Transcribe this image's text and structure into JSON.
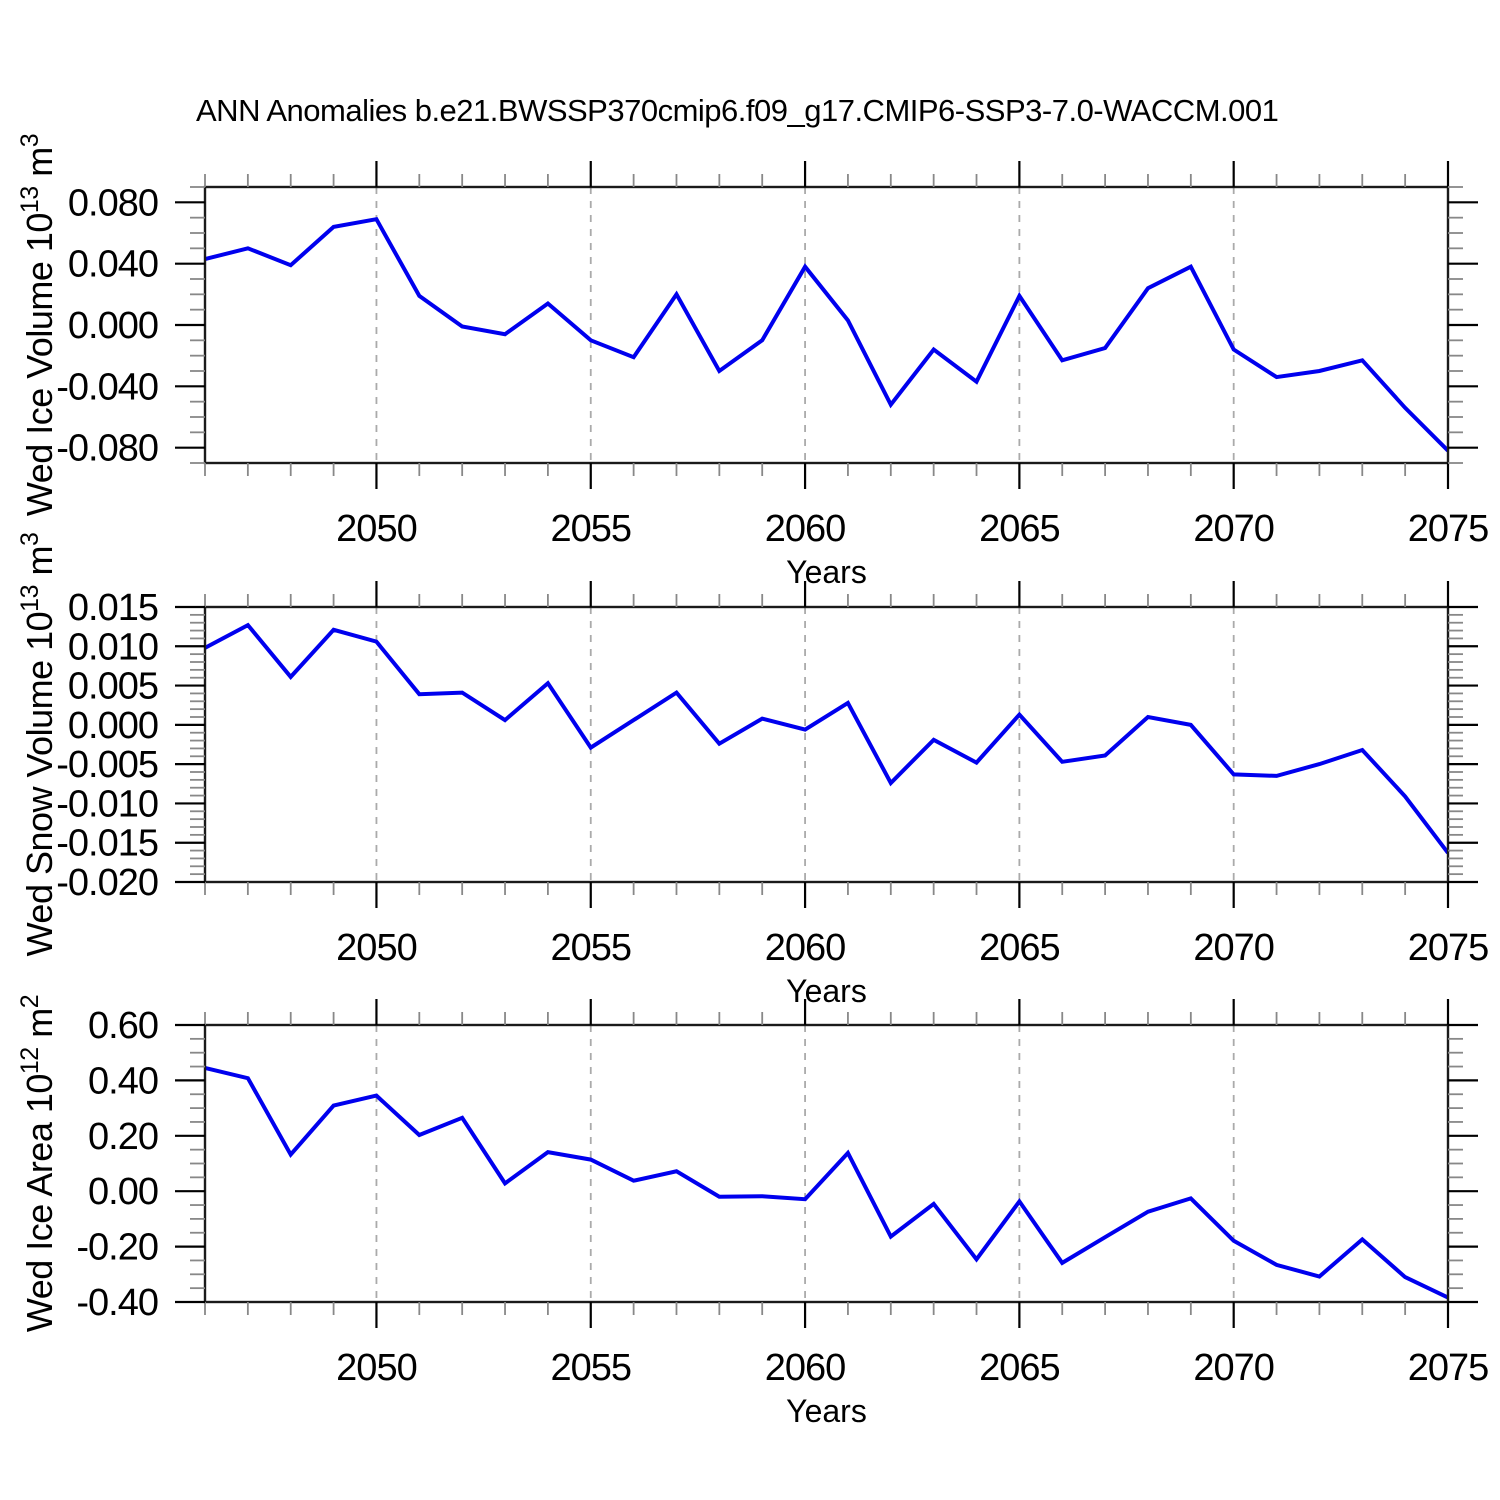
{
  "title": "ANN Anomalies b.e21.BWSSP370cmip6.f09_g17.CMIP6-SSP3-7.0-WACCM.001",
  "colors": {
    "background": "#ffffff",
    "line": "#0000ee",
    "grid": "#aaaaaa",
    "axis": "#1a1a1a",
    "major_tick": "#000000",
    "minor_tick": "#888888",
    "text": "#000000"
  },
  "chart_data": [
    {
      "type": "line",
      "name": "wed-ice-volume",
      "ylabel": "Wed Ice Volume 10^13 m^3",
      "ylabel_parts": [
        {
          "text": "Wed Ice Volume 10",
          "sup": false
        },
        {
          "text": "13",
          "sup": true
        },
        {
          "text": " m",
          "sup": false
        },
        {
          "text": "3",
          "sup": true
        }
      ],
      "xlabel": "Years",
      "x": [
        2046,
        2047,
        2048,
        2049,
        2050,
        2051,
        2052,
        2053,
        2054,
        2055,
        2056,
        2057,
        2058,
        2059,
        2060,
        2061,
        2062,
        2063,
        2064,
        2065,
        2066,
        2067,
        2068,
        2069,
        2070,
        2071,
        2072,
        2073,
        2074,
        2075
      ],
      "values": [
        0.043,
        0.05,
        0.039,
        0.064,
        0.069,
        0.019,
        -0.001,
        -0.006,
        0.014,
        -0.01,
        -0.021,
        0.02,
        -0.03,
        -0.01,
        0.038,
        0.003,
        -0.052,
        -0.016,
        -0.037,
        0.019,
        -0.023,
        -0.015,
        0.024,
        0.038,
        -0.016,
        -0.034,
        -0.03,
        -0.023,
        -0.054,
        -0.082
      ],
      "xlim": [
        2046,
        2075
      ],
      "ylim": [
        -0.09,
        0.09
      ],
      "xticks": {
        "major": [
          2050,
          2055,
          2060,
          2065,
          2070,
          2075
        ],
        "labels": [
          "2050",
          "2055",
          "2060",
          "2065",
          "2070",
          "2075"
        ],
        "minor_step": 1
      },
      "yticks": {
        "major": [
          0.08,
          0.04,
          0.0,
          -0.04,
          -0.08
        ],
        "labels": [
          "0.080",
          "0.040",
          "0.000",
          "-0.040",
          "-0.080"
        ],
        "minor_step": 0.01
      },
      "grid_x": [
        2050,
        2055,
        2060,
        2065,
        2070
      ],
      "grid": "dashed-vertical",
      "legend": "none"
    },
    {
      "type": "line",
      "name": "wed-snow-volume",
      "ylabel": "Wed Snow Volume 10^13 m^3",
      "ylabel_parts": [
        {
          "text": "Wed Snow Volume 10",
          "sup": false
        },
        {
          "text": "13",
          "sup": true
        },
        {
          "text": " m",
          "sup": false
        },
        {
          "text": "3",
          "sup": true
        }
      ],
      "xlabel": "Years",
      "x": [
        2046,
        2047,
        2048,
        2049,
        2050,
        2051,
        2052,
        2053,
        2054,
        2055,
        2056,
        2057,
        2058,
        2059,
        2060,
        2061,
        2062,
        2063,
        2064,
        2065,
        2066,
        2067,
        2068,
        2069,
        2070,
        2071,
        2072,
        2073,
        2074,
        2075
      ],
      "values": [
        0.0098,
        0.0127,
        0.0061,
        0.0121,
        0.0106,
        0.0039,
        0.0041,
        0.0006,
        0.0053,
        -0.0029,
        0.0006,
        0.0041,
        -0.0024,
        0.0008,
        -0.0006,
        0.0028,
        -0.0074,
        -0.0019,
        -0.0048,
        0.0013,
        -0.0047,
        -0.0039,
        0.001,
        0.0,
        -0.0063,
        -0.0065,
        -0.005,
        -0.0032,
        -0.0091,
        -0.0163
      ],
      "xlim": [
        2046,
        2075
      ],
      "ylim": [
        -0.02,
        0.015
      ],
      "xticks": {
        "major": [
          2050,
          2055,
          2060,
          2065,
          2070,
          2075
        ],
        "labels": [
          "2050",
          "2055",
          "2060",
          "2065",
          "2070",
          "2075"
        ],
        "minor_step": 1
      },
      "yticks": {
        "major": [
          0.015,
          0.01,
          0.005,
          0.0,
          -0.005,
          -0.01,
          -0.015,
          -0.02
        ],
        "labels": [
          "0.015",
          "0.010",
          "0.005",
          "0.000",
          "-0.005",
          "-0.010",
          "-0.015",
          "-0.020"
        ],
        "minor_step": 0.001
      },
      "grid_x": [
        2050,
        2055,
        2060,
        2065,
        2070
      ],
      "grid": "dashed-vertical",
      "legend": "none"
    },
    {
      "type": "line",
      "name": "wed-ice-area",
      "ylabel": "Wed Ice Area 10^12 m^2",
      "ylabel_parts": [
        {
          "text": "Wed Ice Area 10",
          "sup": false
        },
        {
          "text": "12",
          "sup": true
        },
        {
          "text": " m",
          "sup": false
        },
        {
          "text": "2",
          "sup": true
        }
      ],
      "xlabel": "Years",
      "x": [
        2046,
        2047,
        2048,
        2049,
        2050,
        2051,
        2052,
        2053,
        2054,
        2055,
        2056,
        2057,
        2058,
        2059,
        2060,
        2061,
        2062,
        2063,
        2064,
        2065,
        2066,
        2067,
        2068,
        2069,
        2070,
        2071,
        2072,
        2073,
        2074,
        2075
      ],
      "values": [
        0.445,
        0.408,
        0.132,
        0.309,
        0.345,
        0.203,
        0.265,
        0.028,
        0.141,
        0.114,
        0.038,
        0.072,
        -0.02,
        -0.018,
        -0.029,
        0.138,
        -0.164,
        -0.046,
        -0.246,
        -0.037,
        -0.259,
        -0.166,
        -0.074,
        -0.026,
        -0.179,
        -0.266,
        -0.308,
        -0.174,
        -0.31,
        -0.384
      ],
      "xlim": [
        2046,
        2075
      ],
      "ylim": [
        -0.4,
        0.6
      ],
      "xticks": {
        "major": [
          2050,
          2055,
          2060,
          2065,
          2070,
          2075
        ],
        "labels": [
          "2050",
          "2055",
          "2060",
          "2065",
          "2070",
          "2075"
        ],
        "minor_step": 1
      },
      "yticks": {
        "major": [
          0.6,
          0.4,
          0.2,
          0.0,
          -0.2,
          -0.4
        ],
        "labels": [
          "0.60",
          "0.40",
          "0.20",
          "0.00",
          "-0.20",
          "-0.40"
        ],
        "minor_step": 0.05
      },
      "grid_x": [
        2050,
        2055,
        2060,
        2065,
        2070
      ],
      "grid": "dashed-vertical",
      "legend": "none"
    }
  ]
}
